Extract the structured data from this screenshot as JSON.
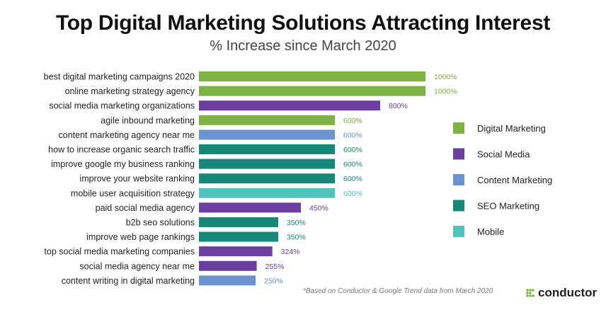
{
  "header": {
    "title": "Top Digital Marketing Solutions Attracting Interest",
    "subtitle": "% Increase since March 2020"
  },
  "footer": {
    "note": "*Based on Conductor & Google Trend data from March 2020",
    "brand": "conductor"
  },
  "colors": {
    "Digital Marketing": "#7cb342",
    "Social Media": "#6b3fa0",
    "Content Marketing": "#6a93d0",
    "SEO Marketing": "#17877a",
    "Mobile": "#4fc3bd"
  },
  "chart_data": {
    "type": "bar",
    "orientation": "horizontal",
    "title": "Top Digital Marketing Solutions Attracting Interest",
    "subtitle": "% Increase since March 2020",
    "xlabel": "",
    "ylabel": "",
    "xlim": [
      0,
      1000
    ],
    "grid": false,
    "legend_position": "right",
    "legend": [
      "Digital Marketing",
      "Social Media",
      "Content Marketing",
      "SEO Marketing",
      "Mobile"
    ],
    "categories": [
      "best digital marketing campaigns 2020",
      "online marketing strategy agency",
      "social media marketing organizations",
      "agile inbound marketing",
      "content marketing agency near me",
      "how to increase organic search traffic",
      "improve google my business ranking",
      "improve your website ranking",
      "mobile user acquisition strategy",
      "paid social media agency",
      "b2b seo solutions",
      "improve web page rankings",
      "top social media marketing companies",
      "social media agency near me",
      "content writing in digital marketing"
    ],
    "values": [
      1000,
      1000,
      800,
      600,
      600,
      600,
      600,
      600,
      600,
      450,
      350,
      350,
      324,
      255,
      250
    ],
    "value_labels": [
      "1000%",
      "1000%",
      "800%",
      "600%",
      "600%",
      "600%",
      "600%",
      "600%",
      "600%",
      "450%",
      "350%",
      "350%",
      "324%",
      "255%",
      "250%"
    ],
    "groups": [
      "Digital Marketing",
      "Digital Marketing",
      "Social Media",
      "Digital Marketing",
      "Content Marketing",
      "SEO Marketing",
      "SEO Marketing",
      "SEO Marketing",
      "Mobile",
      "Social Media",
      "SEO Marketing",
      "SEO Marketing",
      "Social Media",
      "Social Media",
      "Content Marketing"
    ]
  }
}
